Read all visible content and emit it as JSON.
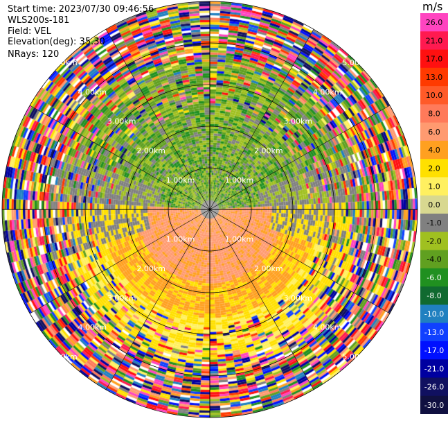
{
  "header": {
    "start_time": "Start time: 2023/07/30 09:46:56",
    "instrument": "WLS200s-181",
    "field": "Field: VEL",
    "elevation": "Elevation(deg): 35.30",
    "nrays": "NRays: 120"
  },
  "colorbar": {
    "unit": "m/s",
    "ticks": [
      "26.0",
      "21.0",
      "17.0",
      "13.0",
      "10.0",
      "8.0",
      "6.0",
      "4.0",
      "2.0",
      "1.0",
      "0.0",
      "-1.0",
      "-2.0",
      "-4.0",
      "-6.0",
      "-8.0",
      "-10.0",
      "-13.0",
      "-17.0",
      "-21.0",
      "-26.0",
      "-30.0"
    ],
    "colors": [
      "#ff44c0",
      "#ff1a50",
      "#ff1010",
      "#ff3a00",
      "#ff5a28",
      "#ff7a5a",
      "#ff9a70",
      "#ffa020",
      "#ffe000",
      "#fff060",
      "#d8d890",
      "#808080",
      "#a0c020",
      "#60a020",
      "#209020",
      "#106a30",
      "#2080c0",
      "#1040ff",
      "#0010ff",
      "#0000a0",
      "#101060",
      "#101040"
    ]
  },
  "range_rings": {
    "labels": [
      "1.00km",
      "2.00km",
      "3.00km",
      "4.00km",
      "5.00km"
    ]
  },
  "ppi": {
    "field": "VEL",
    "nrays": 120
  }
}
